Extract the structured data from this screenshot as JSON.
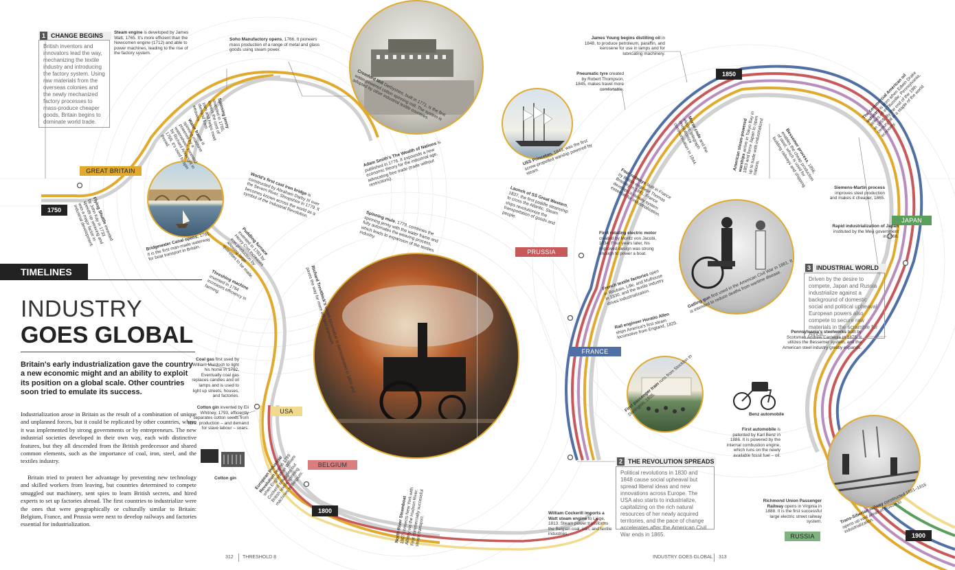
{
  "left_page": {
    "section_tag": "TIMELINES",
    "title_line1": "INDUSTRY",
    "title_line2": "GOES GLOBAL",
    "intro": "Britain's early industrialization gave the country a new economic might and an ability to exploit its position on a global scale. Other countries soon tried to emulate its success.",
    "body_p1": "Industrialization arose in Britain as the result of a combination of unique and unplanned forces, but it could be replicated by other countries, where it was implemented by strong governments or by entrepreneurs. The new industrial societies developed in their own way, each with distinctive features, but they all descended from the British predecessor and shared common elements, such as the importance of coal, iron, steel, and the textiles industry.",
    "body_p2": "Britain tried to protect her advantage by preventing new technology and skilled workers from leaving, but countries determined to compete smuggled out machinery, sent spies to learn British secrets, and hired experts to set up factories abroad. The first countries to industrialize were the ones that were geographically or culturally similar to Britain: Belgium, France, and Prussia were next to develop railways and factories essential for industrialization.",
    "folio_num": "312",
    "folio_label": "THRESHOLD 8"
  },
  "right_page": {
    "folio_label": "INDUSTRY GOES GLOBAL",
    "folio_num": "313"
  },
  "boxes": {
    "change": {
      "num": "1",
      "head": "CHANGE BEGINS",
      "text": "British inventors and innovators lead the way, mechanizing the textile industry and introducing the factory system. Using raw materials from the overseas colonies and the newly mechanized factory processes to mass-produce cheaper goods, Britain begins to dominate world trade."
    },
    "revolution": {
      "num": "2",
      "head": "THE REVOLUTION SPREADS",
      "text": "Political revolutions in 1830 and 1848 cause social upheaval but spread liberal ideas and new innovations across Europe. The USA also starts to industrialize, capitalizing on the rich natural resources of her newly acquired territories, and the pace of change accelerates after the American Civil War ends in 1865."
    },
    "industrial": {
      "num": "3",
      "head": "INDUSTRIAL WORLD",
      "text": "Driven by the desire to compete, Japan and Russia industrialize against a background of domestic social and political upheaval. European powers also compete to secure raw materials in the scramble for Africa."
    }
  },
  "countries": {
    "great_britain": "GREAT BRITAIN",
    "usa": "USA",
    "belgium": "BELGIUM",
    "prussia": "PRUSSIA",
    "france": "FRANCE",
    "japan": "JAPAN",
    "russia": "RUSSIA"
  },
  "years": {
    "y1750": "1750",
    "y1800": "1800",
    "y1850": "1850",
    "y1900": "1900"
  },
  "colors": {
    "gold": "#e0aa2e",
    "pale_gold": "#f0da8e",
    "blue": "#4f6fa5",
    "red": "#c7595a",
    "green": "#5a9e5c",
    "lilac": "#b78fbe",
    "dark": "#222222"
  },
  "events": {
    "steam_engine": {
      "bold": "Steam engine",
      "text": " is developed by James Watt, 1765. It's more efficient than the Newcomen engine (1712) and able to power machines, leading to the rise of the factory system."
    },
    "soho": {
      "bold": "Soho Manufactory opens",
      "text": ", 1766. It pioneers mass production of a range of metal and glass goods using steam power."
    },
    "spinning_jenny": {
      "bold": "Spinning jenny",
      "text": " invented in 1765, lowers the cost of yarn and helps meet demand from weavers."
    },
    "water_frame": {
      "bold": "Water frame",
      "text": " is spinning machine powered by a waterwheel. Invented by Richard Arkwright in 1769, it's used to spin thread."
    },
    "cromford": {
      "bold": "Cromford Mill",
      "text": " Derbyshire, built in 1771, is the first water-powered cotton spinning mill. The system is adopted by other industrial textile countries."
    },
    "adam_smith": {
      "bold": "Adam Smith's The Wealth of Nations",
      "text": " is published in 1776. It expounds a new economic theory for the industrial age, advocating free trade (trade without restrictions)."
    },
    "iron_bridge": {
      "bold": "World's first cast iron bridge",
      "text": " is constructed by Abraham Darby III over the Severn River, Shropshire in 1779. It becomes known across the world as a symbol of the Industrial Revolution."
    },
    "spinning_mule": {
      "bold": "Spinning mule",
      "text": ", 1779, combines the spinning jenny with the water frame and fully automates the weaving process, which leads to expansion of the textiles industry."
    },
    "flying_shuttle": {
      "bold": "Flying Shuttle",
      "text": " invented by John Kay in 1733 speeds up weaving and was a major factor in industrial development."
    },
    "bridgewater": {
      "bold": "Bridgewater Canal opens",
      "text": ", 1761. It is the first man-made waterway for boat transport in Britain."
    },
    "puddling": {
      "bold": "Puddling furnace",
      "text": " invented in 1783 by Henry Cort increases iron production by allowing large quantities to be made."
    },
    "threshing": {
      "bold": "Threshing machine",
      "text": " invented in 1784 increases efficiency in farming."
    },
    "trevithick": {
      "bold": "Richard Trevithick's",
      "text": " steam locomotive is demonstrated in 1804 and paves the way for more efficient transport."
    },
    "coal_gas": {
      "bold": "Coal gas",
      "text": " first used by William Murdoch to light his home in 1792. Eventually coal gas replaces candles and oil lamps and is used to light up streets, houses, and factories."
    },
    "cotton_gin": {
      "bold": "Cotton gin",
      "text": " invented by Eli Whitney, 1793, efficiently separates cotton seeds from fibre. production – and demand for slave labour – soars."
    },
    "cotton_gin_label": "Cotton gin",
    "european_revolution": {
      "bold": "European Industrial Revolution",
      "text": " begins 1799 when Englishman William Cockerill smuggles out British textile spinning machines to Belgium."
    },
    "north_river": {
      "bold": "North River Steamboat",
      "text": " 1807 connects New York with Albany via the Hudson River. First commercially successful steam transport."
    },
    "cockerill": {
      "bold": "William Cockerill imports a Watt steam engine",
      "text": " to Liège, 1813. Steam power transforms the Belgian coal, iron, and textile industries."
    },
    "james_young": {
      "bold": "James Young begins distilling oil",
      "text": " in 1848, to produce petroleum, paraffin, and kerosene for use in lamps and for lubricating machinery."
    },
    "pneumatic": {
      "bold": "Pneumatic tyre",
      "text": " created by Robert Thompson, 1845, makes travel more comfortable."
    },
    "uss_princeton": {
      "bold": "USS Princeton",
      "text": ", 1843, was the first screw-propelled warship powered by steam."
    },
    "great_western": {
      "bold": "Launch of SS Great Western",
      "text": ", 1837, the first paddle steamship to cross the Atlantic. Steam ships revolutionize the transportation of goods and people."
    },
    "four_railways": {
      "bold": "Four railways",
      "text": " built in France by British engineer Thomas Brassey in 1841. France develops a railway system essential for industrialization."
    },
    "morse": {
      "bold": "Morse code",
      "text": " and the electric telegraph revolutionize communication in 1844."
    },
    "steam_warship": {
      "bold": "American steam-powered warships",
      "text": " arrive in Tokyo Bay in 1853 and force Japan to open up to trade with industrialized nations."
    },
    "bessemer": {
      "bold": "Bessemer process",
      "text": ", 1856, enables the cheap production of steel, which is used for building railways and shipping."
    },
    "oil_industry": {
      "bold": "The commercial American oil industry",
      "text": " is born when Edwin Drake strikes oil in Titusville, Pennsylvania, in 1859. By the end of the 19th century oil is a staple of the world economy."
    },
    "siemens": {
      "bold": "Siemens-Martin process",
      "text": " improves steel production and makes it cheaper, 1865."
    },
    "meiji": {
      "bold": "Rapid industrialization of Japan",
      "text": " instituted by the Meiji government in 1868."
    },
    "electric_motor": {
      "bold": "First rotating electric motor",
      "text": " created by Moritz von Jacobi, 1834. Four years later, his improved design was strong enough to power a boat."
    },
    "french_textile": {
      "bold": "French textile factories",
      "text": " open in Roubaix, Lille, and Mulhouse in 1830, and the textile industry drives industrialization."
    },
    "horatio_allen": {
      "bold": "Rail engineer Horatio Allen",
      "text": " ships America's first steam locomotive from England, 1829."
    },
    "gatling": {
      "bold": "Gatling gun",
      "text": " first used in the American Civil War in 1861. It is intended to reduce deaths from wartime disease."
    },
    "pennsylvania": {
      "bold": "Pennsylvania's steelworks",
      "text": " built by Scotsman Andrew Carnegie in 1875. It utilizes the Bessemer system, and the American steel industry greatly expands."
    },
    "first_passenger_train": {
      "bold": "First passenger train",
      "text": " runs from Stockton to Darlington, 1825."
    },
    "benz_label": "Benz automobile",
    "first_automobile": {
      "bold": "First automobile",
      "text": " is patented by Karl Benz in 1886. It is powered by the internal combustion engine, which runs on the newly available fossil fuel – oil."
    },
    "richmond": {
      "bold": "Richmond Union Passenger Railway",
      "text": " opens in Virginia in 1888. It is the first successful large electric street railway system."
    },
    "trans_siberian": {
      "bold": "Trans-Siberian railway",
      "text": " constructed 1891–1916 opens up vast areas of Russia to industrialization."
    }
  }
}
